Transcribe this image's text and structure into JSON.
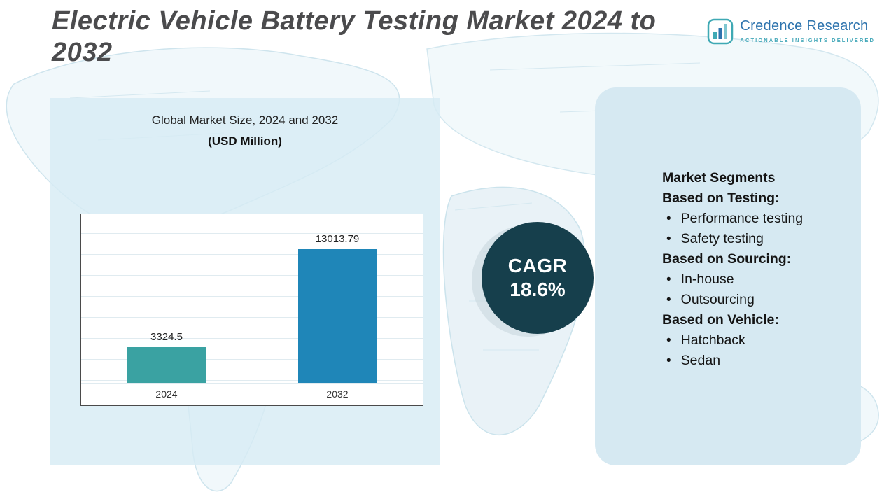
{
  "header": {
    "title": "Electric Vehicle Battery Testing Market 2024 to 2032",
    "logo": {
      "name": "Credence Research",
      "tagline": "Actionable Insights Delivered"
    }
  },
  "chart_data": {
    "type": "bar",
    "title": "Global Market Size, 2024 and 2032",
    "subtitle": "(USD Million)",
    "unit": "USD Million",
    "categories": [
      "2024",
      "2032"
    ],
    "values": [
      3324.5,
      13013.79
    ],
    "ylim": [
      0,
      14000
    ],
    "grid": true,
    "legend": "none",
    "bar_colors": [
      "#3aa2a2",
      "#1f86b8"
    ]
  },
  "cagr": {
    "label": "CAGR",
    "value": "18.6%"
  },
  "segments": {
    "title": "Market Segments",
    "groups": [
      {
        "heading": "Based on Testing:",
        "items": [
          "Performance testing",
          "Safety testing"
        ]
      },
      {
        "heading": "Based on Sourcing:",
        "items": [
          "In-house",
          "Outsourcing"
        ]
      },
      {
        "heading": "Based on Vehicle:",
        "items": [
          "Hatchback",
          "Sedan"
        ]
      }
    ]
  }
}
